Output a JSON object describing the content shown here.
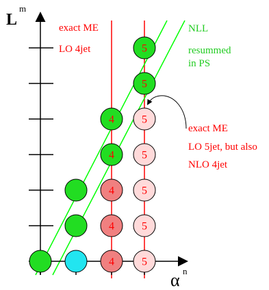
{
  "axes": {
    "y_label": "L",
    "y_exp": "m",
    "x_label": "α",
    "x_exp": "n"
  },
  "annotations": {
    "exact_me_line1": "exact ME",
    "exact_me_line2": "LO 4jet",
    "nll_line1": "NLL",
    "nll_line2": "resummed",
    "nll_line3": "in PS",
    "arrow_note_line1": "exact ME",
    "arrow_note_line2": "LO 5jet, but also",
    "arrow_note_line3": "NLO 4jet"
  },
  "colors": {
    "red": "#ff0000",
    "green": "#00ff00",
    "green_fill": "#22dd22",
    "cyan_fill": "#22e5f0",
    "salmon_fill": "#f08080",
    "pink_fill": "#ffdada",
    "axis": "#000000"
  },
  "circles": [
    {
      "id": "c-0-0",
      "fill": "green_fill",
      "label": ""
    },
    {
      "id": "c-1-0",
      "fill": "cyan_fill",
      "label": ""
    },
    {
      "id": "c-1-1",
      "fill": "green_fill",
      "label": ""
    },
    {
      "id": "c-1-2",
      "fill": "green_fill",
      "label": ""
    },
    {
      "id": "c-2-0",
      "fill": "salmon_fill",
      "label": "4"
    },
    {
      "id": "c-2-1",
      "fill": "salmon_fill",
      "label": "4"
    },
    {
      "id": "c-2-2",
      "fill": "salmon_fill",
      "label": "4"
    },
    {
      "id": "c-2-3",
      "fill": "green_fill",
      "label": "4"
    },
    {
      "id": "c-2-4",
      "fill": "green_fill",
      "label": "4"
    },
    {
      "id": "c-3-0",
      "fill": "pink_fill",
      "label": "5"
    },
    {
      "id": "c-3-1",
      "fill": "pink_fill",
      "label": "5"
    },
    {
      "id": "c-3-2",
      "fill": "pink_fill",
      "label": "5"
    },
    {
      "id": "c-3-3",
      "fill": "pink_fill",
      "label": "5"
    },
    {
      "id": "c-3-4",
      "fill": "pink_fill",
      "label": "5"
    },
    {
      "id": "c-3-5",
      "fill": "green_fill",
      "label": "5"
    },
    {
      "id": "c-3-6",
      "fill": "green_fill",
      "label": "5"
    }
  ]
}
